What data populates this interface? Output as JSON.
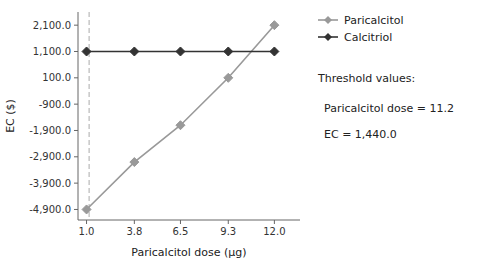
{
  "chart_data": {
    "type": "line",
    "x": [
      1.0,
      3.8,
      6.5,
      9.3,
      12.0
    ],
    "series": [
      {
        "name": "Paricalcitol",
        "color": "#999999",
        "marker": "diamond",
        "values": [
          -4900.0,
          -3100.0,
          -1700.0,
          100.0,
          2100.0
        ]
      },
      {
        "name": "Calcitriol",
        "color": "#333333",
        "marker": "diamond",
        "values": [
          1100.0,
          1100.0,
          1100.0,
          1100.0,
          1100.0
        ]
      }
    ],
    "x_label": "Paricalcitol dose (μg)",
    "y_label": "EC ($)",
    "xlim": [
      0.5,
      13.5
    ],
    "ylim": [
      -5300,
      2600
    ],
    "xticks": [
      {
        "value": 1,
        "label": "1.0"
      },
      3.8,
      6.5,
      9.3,
      {
        "value": 12,
        "label": "12.0"
      }
    ],
    "yticks": [
      {
        "value": -4900,
        "label": "-4,900.0"
      },
      {
        "value": -3900,
        "label": "-3,900.0"
      },
      {
        "value": -2900,
        "label": "-2,900.0"
      },
      {
        "value": -1900,
        "label": "-1,900.0"
      },
      {
        "value": -900,
        "label": "-900.0"
      },
      {
        "value": 100,
        "label": "100.0"
      },
      {
        "value": 1100,
        "label": "1,100.0"
      },
      {
        "value": 2100,
        "label": "2,100.0"
      }
    ],
    "reference_line": {
      "x": 1.15,
      "color": "#aaaaaa",
      "line_style": "dashed"
    },
    "annotations": [
      "Threshold values:",
      "Paricalcitol dose = 11.2",
      "EC = 1,440.0"
    ],
    "legend": "right",
    "grid": false
  }
}
